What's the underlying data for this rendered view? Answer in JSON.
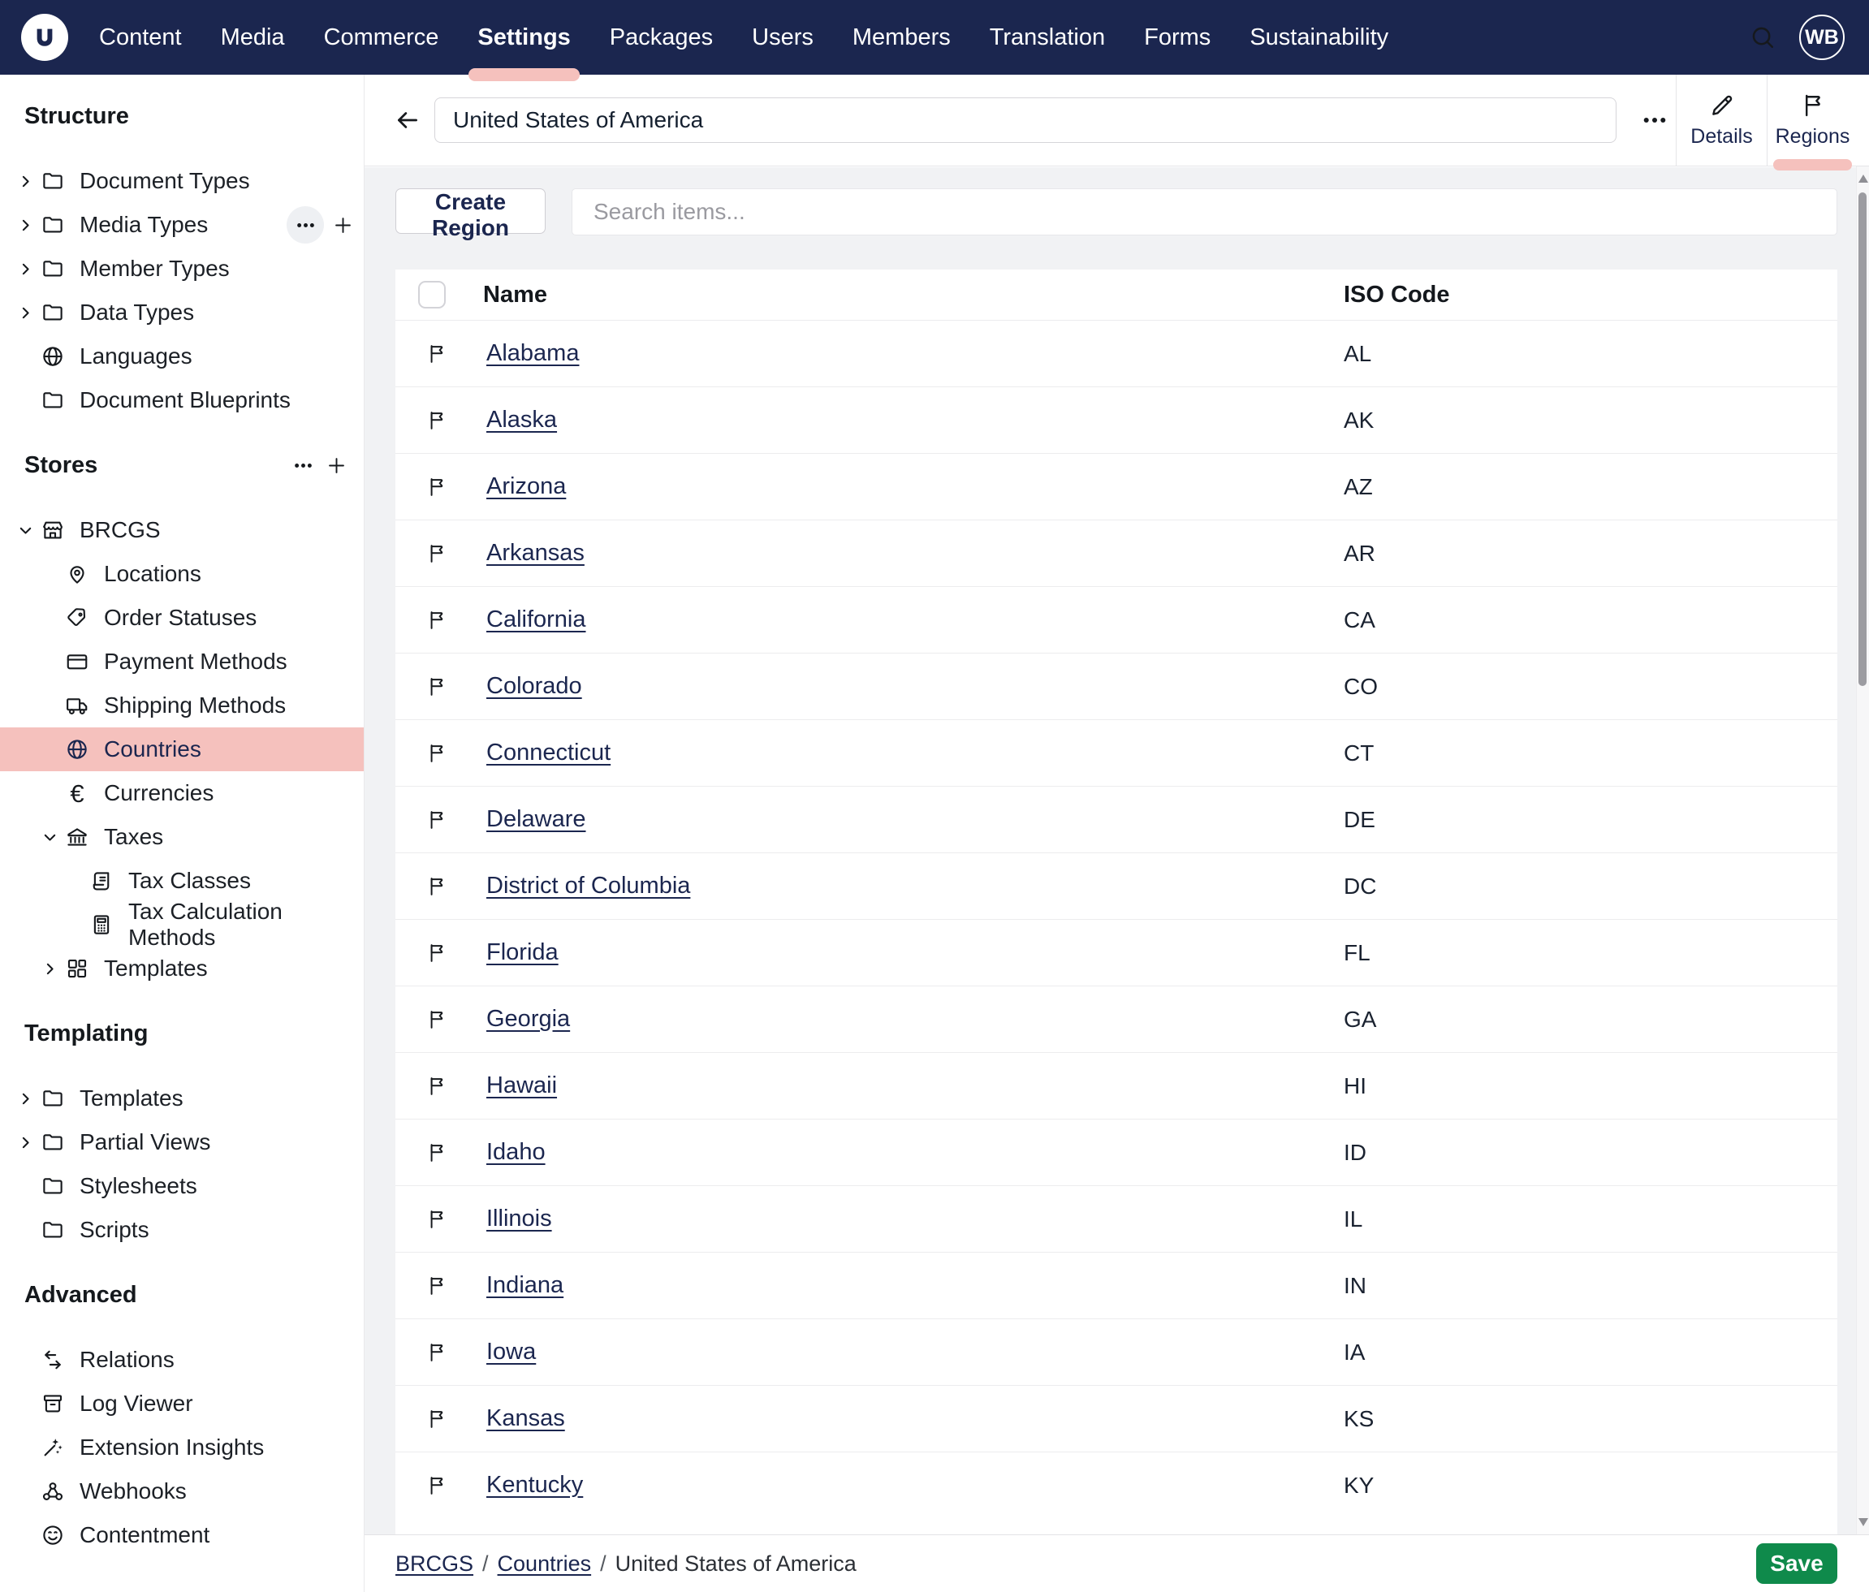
{
  "colors": {
    "navy": "#1b264f",
    "pink": "#f5c1bd",
    "green": "#0f8a4b",
    "link": "#1b264f"
  },
  "topnav": {
    "items": [
      {
        "label": "Content"
      },
      {
        "label": "Media"
      },
      {
        "label": "Commerce"
      },
      {
        "label": "Settings",
        "active": true
      },
      {
        "label": "Packages"
      },
      {
        "label": "Users"
      },
      {
        "label": "Members"
      },
      {
        "label": "Translation"
      },
      {
        "label": "Forms"
      },
      {
        "label": "Sustainability"
      }
    ],
    "avatar_initials": "WB"
  },
  "sidebar": {
    "sections": [
      {
        "title": "Structure",
        "items": [
          {
            "label": "Document Types",
            "icon": "folder",
            "chevron": "right"
          },
          {
            "label": "Media Types",
            "icon": "folder",
            "chevron": "right",
            "hover_actions": true
          },
          {
            "label": "Member Types",
            "icon": "folder",
            "chevron": "right"
          },
          {
            "label": "Data Types",
            "icon": "folder",
            "chevron": "right"
          },
          {
            "label": "Languages",
            "icon": "globe"
          },
          {
            "label": "Document Blueprints",
            "icon": "folder"
          }
        ]
      },
      {
        "title": "Stores",
        "title_actions": true,
        "items": [
          {
            "label": "BRCGS",
            "icon": "store",
            "chevron": "down"
          },
          {
            "label": "Locations",
            "icon": "map-pin",
            "indent": 1
          },
          {
            "label": "Order Statuses",
            "icon": "tag",
            "indent": 1
          },
          {
            "label": "Payment Methods",
            "icon": "credit-card",
            "indent": 1
          },
          {
            "label": "Shipping Methods",
            "icon": "truck",
            "indent": 1
          },
          {
            "label": "Countries",
            "icon": "globe",
            "indent": 1,
            "active": true
          },
          {
            "label": "Currencies",
            "icon": "euro",
            "indent": 1
          },
          {
            "label": "Taxes",
            "icon": "bank",
            "chevron": "down",
            "indent": 1
          },
          {
            "label": "Tax Classes",
            "icon": "scroll",
            "indent": 2
          },
          {
            "label": "Tax Calculation Methods",
            "icon": "calculator",
            "indent": 2
          },
          {
            "label": "Templates",
            "icon": "grid",
            "chevron": "right",
            "indent": 1
          }
        ]
      },
      {
        "title": "Templating",
        "items": [
          {
            "label": "Templates",
            "icon": "folder",
            "chevron": "right"
          },
          {
            "label": "Partial Views",
            "icon": "folder",
            "chevron": "right"
          },
          {
            "label": "Stylesheets",
            "icon": "folder"
          },
          {
            "label": "Scripts",
            "icon": "folder"
          }
        ]
      },
      {
        "title": "Advanced",
        "items": [
          {
            "label": "Relations",
            "icon": "swap"
          },
          {
            "label": "Log Viewer",
            "icon": "box"
          },
          {
            "label": "Extension Insights",
            "icon": "wand"
          },
          {
            "label": "Webhooks",
            "icon": "webhook"
          },
          {
            "label": "Contentment",
            "icon": "smiley"
          }
        ]
      }
    ]
  },
  "header": {
    "name_value": "United States of America",
    "tabs": [
      {
        "label": "Details",
        "icon": "pencil"
      },
      {
        "label": "Regions",
        "icon": "flag",
        "active": true
      }
    ]
  },
  "toolbar": {
    "create_label": "Create Region",
    "search_placeholder": "Search items..."
  },
  "table": {
    "columns": [
      "Name",
      "ISO Code"
    ],
    "rows": [
      {
        "name": "Alabama",
        "iso": "AL"
      },
      {
        "name": "Alaska",
        "iso": "AK"
      },
      {
        "name": "Arizona",
        "iso": "AZ"
      },
      {
        "name": "Arkansas",
        "iso": "AR"
      },
      {
        "name": "California",
        "iso": "CA"
      },
      {
        "name": "Colorado",
        "iso": "CO"
      },
      {
        "name": "Connecticut",
        "iso": "CT"
      },
      {
        "name": "Delaware",
        "iso": "DE"
      },
      {
        "name": "District of Columbia",
        "iso": "DC"
      },
      {
        "name": "Florida",
        "iso": "FL"
      },
      {
        "name": "Georgia",
        "iso": "GA"
      },
      {
        "name": "Hawaii",
        "iso": "HI"
      },
      {
        "name": "Idaho",
        "iso": "ID"
      },
      {
        "name": "Illinois",
        "iso": "IL"
      },
      {
        "name": "Indiana",
        "iso": "IN"
      },
      {
        "name": "Iowa",
        "iso": "IA"
      },
      {
        "name": "Kansas",
        "iso": "KS"
      },
      {
        "name": "Kentucky",
        "iso": "KY"
      }
    ]
  },
  "footer": {
    "breadcrumb": [
      {
        "label": "BRCGS",
        "link": true
      },
      {
        "label": "Countries",
        "link": true
      },
      {
        "label": "United States of America",
        "link": false
      }
    ],
    "save_label": "Save"
  }
}
